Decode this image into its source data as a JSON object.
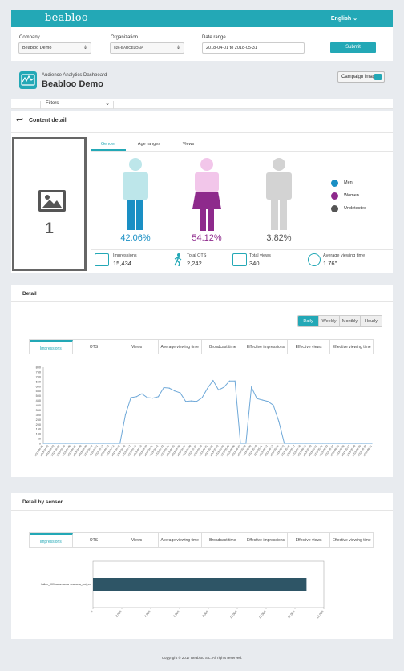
{
  "header": {
    "logo": "beabloo",
    "language": "English"
  },
  "filters": {
    "company_label": "Company",
    "company_value": "Beabloo Demo",
    "organization_label": "Organization",
    "organization_value": "026-BARCELONA",
    "date_label": "Date range",
    "date_value": "2018-04-01 to 2018-05-31",
    "submit_label": "Submit"
  },
  "dashboard": {
    "subtitle": "Audience Analytics Dashboard",
    "title": "Beabloo Demo",
    "campaign_button": "Campaign image"
  },
  "filters_toggle": "Filters",
  "content_detail": {
    "title": "Content detail",
    "content_number": "1",
    "tabs": [
      "Gender",
      "Age ranges",
      "Views"
    ],
    "gender": [
      {
        "label": "Men",
        "percent": "42.06%",
        "color": "#1a8fc4"
      },
      {
        "label": "Women",
        "percent": "54.12%",
        "color": "#8e2a8c"
      },
      {
        "label": "Undetected",
        "percent": "3.82%",
        "color": "#555555"
      }
    ],
    "stats": [
      {
        "label": "Impressions",
        "value": "15,434",
        "icon": "impressions-icon"
      },
      {
        "label": "Total OTS",
        "value": "2,242",
        "icon": "walking-person-icon"
      },
      {
        "label": "Total views",
        "value": "340",
        "icon": "viewer-icon"
      },
      {
        "label": "Average viewing time",
        "value": "1.76\"",
        "icon": "stopwatch-icon"
      }
    ]
  },
  "detail": {
    "title": "Detail",
    "periods": [
      "Daily",
      "Weekly",
      "Monthly",
      "Hourly"
    ],
    "metric_tabs": [
      "Impressions",
      "OTS",
      "Views",
      "Average viewing time",
      "Broadcast time",
      "Effective impressions",
      "Effective views",
      "Effective viewing time"
    ]
  },
  "sensor": {
    "title": "Detail by sensor",
    "metric_tabs": [
      "Impressions",
      "OTS",
      "Views",
      "Average viewing time",
      "Broadcast time",
      "Effective impressions",
      "Effective views",
      "Effective viewing time"
    ]
  },
  "footer": "Copyright © 2017 Beabloo S.L. All rights reserved.",
  "chart_data": [
    {
      "type": "line",
      "x": [
        "2018-04-01",
        "2018-04-02",
        "2018-04-03",
        "2018-04-04",
        "2018-04-05",
        "2018-04-06",
        "2018-04-07",
        "2018-04-08",
        "2018-04-09",
        "2018-04-10",
        "2018-04-11",
        "2018-04-12",
        "2018-04-13",
        "2018-04-14",
        "2018-04-15",
        "2018-04-16",
        "2018-04-17",
        "2018-04-18",
        "2018-04-19",
        "2018-04-20",
        "2018-04-21",
        "2018-04-22",
        "2018-04-23",
        "2018-04-24",
        "2018-04-25",
        "2018-04-26",
        "2018-04-27",
        "2018-04-28",
        "2018-04-29",
        "2018-04-30",
        "2018-05-01",
        "2018-05-02",
        "2018-05-03",
        "2018-05-04",
        "2018-05-05",
        "2018-05-06",
        "2018-05-07",
        "2018-05-08",
        "2018-05-09",
        "2018-05-10",
        "2018-05-11",
        "2018-05-12",
        "2018-05-13",
        "2018-05-14",
        "2018-05-15",
        "2018-05-16",
        "2018-05-17",
        "2018-05-18",
        "2018-05-19",
        "2018-05-20",
        "2018-05-21",
        "2018-05-22",
        "2018-05-23",
        "2018-05-24",
        "2018-05-25",
        "2018-05-26",
        "2018-05-27",
        "2018-05-28",
        "2018-05-29",
        "2018-05-30",
        "2018-05-31"
      ],
      "values": [
        0,
        0,
        0,
        0,
        0,
        0,
        0,
        0,
        0,
        0,
        0,
        0,
        0,
        0,
        0,
        300,
        480,
        490,
        520,
        480,
        475,
        490,
        585,
        580,
        550,
        530,
        440,
        445,
        440,
        480,
        580,
        660,
        560,
        590,
        655,
        655,
        0,
        0,
        590,
        470,
        455,
        440,
        400,
        230,
        0,
        0,
        0,
        0,
        0,
        0,
        0,
        0,
        0,
        0,
        0,
        0,
        0,
        0,
        0,
        0,
        0
      ],
      "yticks": [
        "0",
        "50",
        "100",
        "150",
        "200",
        "250",
        "300",
        "350",
        "400",
        "450",
        "500",
        "550",
        "600",
        "650",
        "700",
        "750",
        "800"
      ],
      "ylim": [
        0,
        800
      ]
    },
    {
      "type": "bar",
      "orientation": "horizontal",
      "categories": [
        "hallon_009-salamanca - camera_out_xx"
      ],
      "values": [
        14800
      ],
      "xticks": [
        "0",
        "2,000",
        "4,000",
        "6,000",
        "8,000",
        "10,000",
        "12,000",
        "14,000",
        "16,000"
      ],
      "xlim": [
        0,
        16000
      ],
      "color": "#2e5566"
    }
  ]
}
